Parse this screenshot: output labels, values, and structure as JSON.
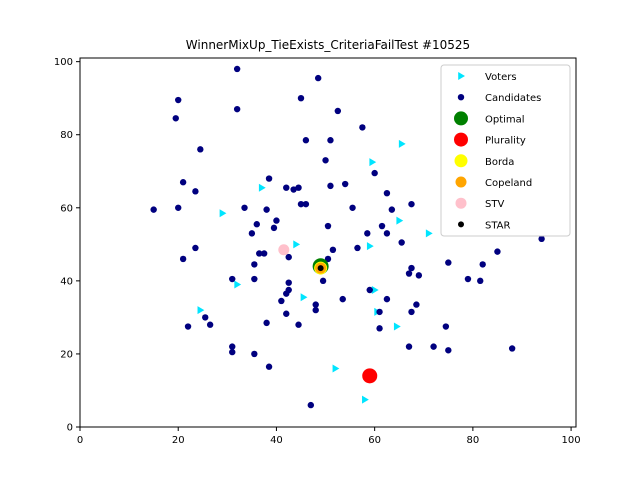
{
  "chart_data": {
    "type": "scatter",
    "title": "WinnerMixUp_TieExists_CriteriaFailTest #10525",
    "xlabel": "",
    "ylabel": "",
    "xlim": [
      0,
      101
    ],
    "ylim": [
      0,
      101
    ],
    "xticks": [
      0,
      20,
      40,
      60,
      80,
      100
    ],
    "yticks": [
      0,
      20,
      40,
      60,
      80,
      100
    ],
    "grid": false,
    "legend_position": "top-right",
    "series": [
      {
        "name": "Voters",
        "marker": "triangle-right",
        "color": "#00e5ff",
        "points": [
          [
            24.5,
            32
          ],
          [
            32,
            39
          ],
          [
            37,
            65.5
          ],
          [
            44,
            50
          ],
          [
            45.5,
            35.5
          ],
          [
            52,
            16
          ],
          [
            58,
            7.5
          ],
          [
            60,
            37.5
          ],
          [
            60.5,
            31.5
          ],
          [
            59,
            49.5
          ],
          [
            59.5,
            72.5
          ],
          [
            65,
            56.5
          ],
          [
            65.5,
            77.5
          ],
          [
            64.5,
            27.5
          ],
          [
            71,
            53
          ],
          [
            29,
            58.5
          ]
        ]
      },
      {
        "name": "Candidates",
        "marker": "circle",
        "color": "#00007f",
        "points": [
          [
            32,
            98
          ],
          [
            48.5,
            95.5
          ],
          [
            20,
            89.5
          ],
          [
            19.5,
            84.5
          ],
          [
            32,
            87
          ],
          [
            45,
            90
          ],
          [
            52.5,
            86.5
          ],
          [
            57.5,
            82
          ],
          [
            24.5,
            76
          ],
          [
            46,
            78.5
          ],
          [
            51,
            78.5
          ],
          [
            50,
            73
          ],
          [
            21,
            67
          ],
          [
            23.5,
            64.5
          ],
          [
            38.5,
            68
          ],
          [
            42,
            65.5
          ],
          [
            43.5,
            65
          ],
          [
            44.5,
            65.5
          ],
          [
            45,
            61
          ],
          [
            46,
            61
          ],
          [
            51,
            66
          ],
          [
            54,
            66.5
          ],
          [
            60,
            69.5
          ],
          [
            62.5,
            64
          ],
          [
            15,
            59.5
          ],
          [
            20,
            60
          ],
          [
            33.5,
            60
          ],
          [
            36,
            55.5
          ],
          [
            38,
            59.5
          ],
          [
            40,
            56.5
          ],
          [
            39.5,
            54.5
          ],
          [
            35,
            53
          ],
          [
            55.5,
            60
          ],
          [
            58.5,
            53
          ],
          [
            61.5,
            55
          ],
          [
            62.5,
            53
          ],
          [
            63.5,
            59.5
          ],
          [
            67.5,
            61
          ],
          [
            65.5,
            50.5
          ],
          [
            50.5,
            55
          ],
          [
            21,
            46
          ],
          [
            23.5,
            49
          ],
          [
            35.5,
            44.5
          ],
          [
            36.5,
            47.5
          ],
          [
            37.5,
            47.5
          ],
          [
            42.5,
            46.5
          ],
          [
            50.5,
            46
          ],
          [
            51.5,
            48.5
          ],
          [
            56.5,
            49
          ],
          [
            31,
            40.5
          ],
          [
            35.5,
            40.5
          ],
          [
            42.5,
            39.5
          ],
          [
            42,
            36.5
          ],
          [
            42.5,
            37.5
          ],
          [
            49.5,
            40
          ],
          [
            53.5,
            35
          ],
          [
            59,
            37.5
          ],
          [
            61,
            31.5
          ],
          [
            62.5,
            35
          ],
          [
            67,
            42
          ],
          [
            67.5,
            43.5
          ],
          [
            69,
            41.5
          ],
          [
            68.5,
            33.5
          ],
          [
            67.5,
            31.5
          ],
          [
            75,
            45
          ],
          [
            79,
            40.5
          ],
          [
            81.5,
            40
          ],
          [
            82,
            44.5
          ],
          [
            85,
            48
          ],
          [
            94,
            51.5
          ],
          [
            25.5,
            30
          ],
          [
            26.5,
            28
          ],
          [
            22,
            27.5
          ],
          [
            31,
            22
          ],
          [
            31,
            20.5
          ],
          [
            35.5,
            20
          ],
          [
            38,
            28.5
          ],
          [
            41,
            34.5
          ],
          [
            42,
            31
          ],
          [
            44.5,
            28
          ],
          [
            48,
            33.5
          ],
          [
            48,
            32
          ],
          [
            61,
            27
          ],
          [
            67,
            22
          ],
          [
            72,
            22
          ],
          [
            74.5,
            27.5
          ],
          [
            75,
            21
          ],
          [
            88,
            21.5
          ],
          [
            38.5,
            16.5
          ],
          [
            47,
            6
          ]
        ]
      },
      {
        "name": "Optimal",
        "marker": "circle",
        "color": "#008000",
        "points": [
          [
            49,
            44
          ]
        ]
      },
      {
        "name": "Plurality",
        "marker": "circle",
        "color": "#ff0000",
        "points": [
          [
            59,
            14
          ]
        ]
      },
      {
        "name": "Borda",
        "marker": "circle",
        "color": "#ffff00",
        "points": [
          [
            49,
            43.5
          ]
        ]
      },
      {
        "name": "Copeland",
        "marker": "circle",
        "color": "#ffa500",
        "points": [
          [
            49,
            43.5
          ]
        ]
      },
      {
        "name": "STV",
        "marker": "circle",
        "color": "#ffc0cb",
        "points": [
          [
            41.5,
            48.5
          ]
        ]
      },
      {
        "name": "STAR",
        "marker": "circle",
        "color": "#000000",
        "points": [
          [
            49,
            43.5
          ]
        ]
      }
    ]
  }
}
